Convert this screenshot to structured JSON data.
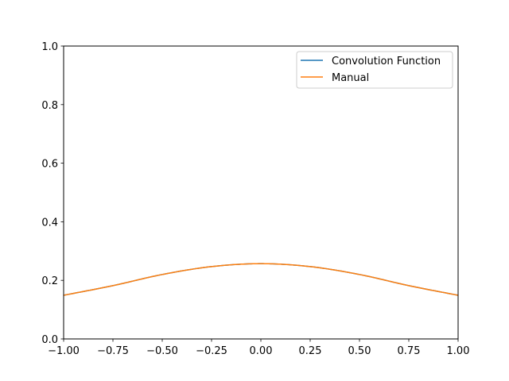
{
  "chart_data": {
    "type": "line",
    "title": "",
    "xlabel": "",
    "ylabel": "",
    "xlim": [
      -1.0,
      1.0
    ],
    "ylim": [
      0.0,
      1.0
    ],
    "grid": false,
    "legend_position": "upper right",
    "x_ticks": [
      "−1.00",
      "−0.75",
      "−0.50",
      "−0.25",
      "0.00",
      "0.25",
      "0.50",
      "0.75",
      "1.00"
    ],
    "y_ticks": [
      "0.0",
      "0.2",
      "0.4",
      "0.6",
      "0.8",
      "1.0"
    ],
    "x": [
      -1.0,
      -0.75,
      -0.5,
      -0.25,
      0.0,
      0.25,
      0.5,
      0.75,
      1.0
    ],
    "series": [
      {
        "name": "Convolution Function",
        "color": "#1f77b4",
        "values": [
          0.149,
          0.182,
          0.22,
          0.247,
          0.257,
          0.247,
          0.22,
          0.182,
          0.149
        ]
      },
      {
        "name": "Manual",
        "color": "#ff7f0e",
        "values": [
          0.149,
          0.182,
          0.22,
          0.247,
          0.257,
          0.247,
          0.22,
          0.182,
          0.149
        ]
      }
    ]
  },
  "legend": {
    "items": [
      {
        "label": "Convolution Function",
        "color": "#1f77b4"
      },
      {
        "label": "Manual",
        "color": "#ff7f0e"
      }
    ]
  }
}
